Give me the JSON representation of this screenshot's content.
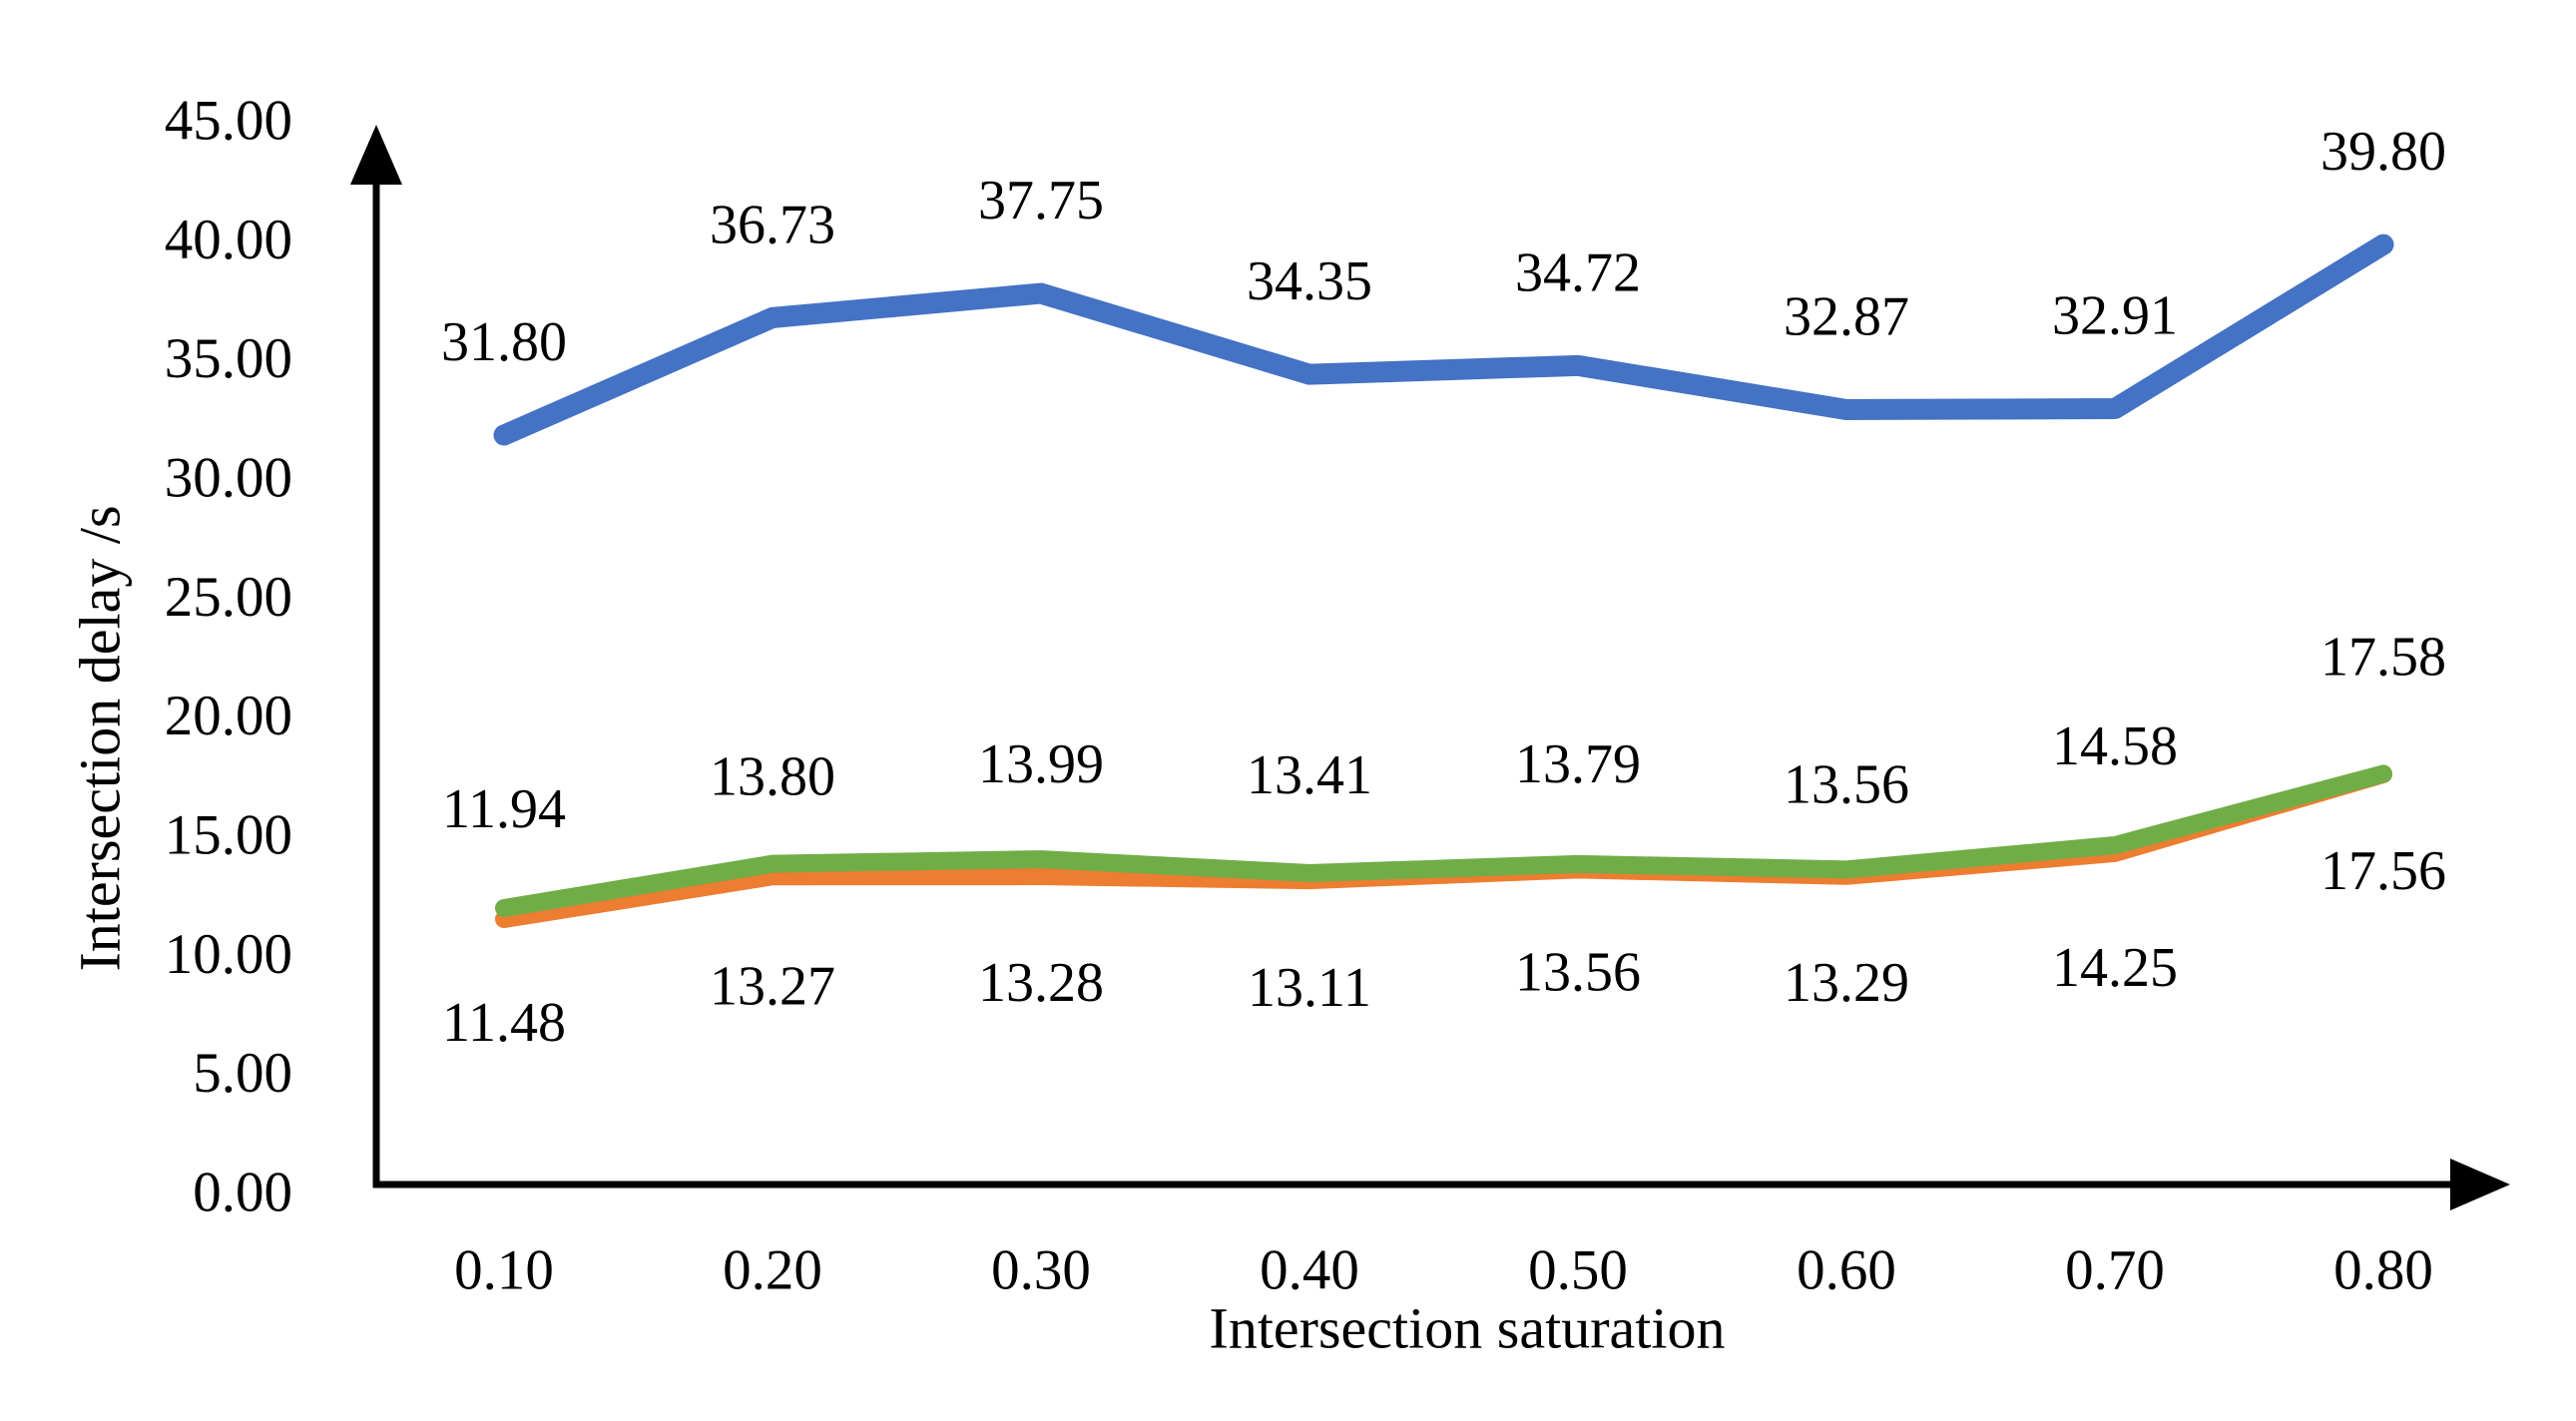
{
  "chart_data": {
    "type": "line",
    "title": "",
    "xlabel": "Intersection saturation",
    "ylabel": "Intersection delay /s",
    "x": [
      0.1,
      0.2,
      0.3,
      0.4,
      0.5,
      0.6,
      0.7,
      0.8
    ],
    "x_tick_labels": [
      "0.10",
      "0.20",
      "0.30",
      "0.40",
      "0.50",
      "0.60",
      "0.70",
      "0.80"
    ],
    "y_tick_values": [
      0,
      5,
      10,
      15,
      20,
      25,
      30,
      35,
      40,
      45
    ],
    "y_tick_labels": [
      "0.00",
      "5.00",
      "10.00",
      "15.00",
      "20.00",
      "25.00",
      "30.00",
      "35.00",
      "40.00",
      "45.00"
    ],
    "ylim": [
      0,
      45
    ],
    "grid": false,
    "legend_position": "none",
    "axis_arrows": true,
    "series": [
      {
        "name": "blue-line",
        "color": "#4472C4",
        "values": [
          31.8,
          36.73,
          37.75,
          34.35,
          34.72,
          32.87,
          32.91,
          39.8
        ],
        "labels": [
          "31.80",
          "36.73",
          "37.75",
          "34.35",
          "34.72",
          "32.87",
          "32.91",
          "39.80"
        ]
      },
      {
        "name": "orange-line",
        "color": "#ED7D31",
        "values": [
          11.48,
          13.27,
          13.28,
          13.11,
          13.56,
          13.29,
          14.25,
          17.56
        ],
        "labels": [
          "11.48",
          "13.27",
          "13.28",
          "13.11",
          "13.56",
          "13.29",
          "14.25",
          "17.56"
        ]
      },
      {
        "name": "green-line",
        "color": "#70AD47",
        "values": [
          11.94,
          13.8,
          13.99,
          13.41,
          13.79,
          13.56,
          14.58,
          17.58
        ],
        "labels": [
          "11.94",
          "13.80",
          "13.99",
          "13.41",
          "13.79",
          "13.56",
          "14.58",
          "17.58"
        ]
      }
    ],
    "axis_color": "#000000",
    "label_color": "#000000"
  }
}
